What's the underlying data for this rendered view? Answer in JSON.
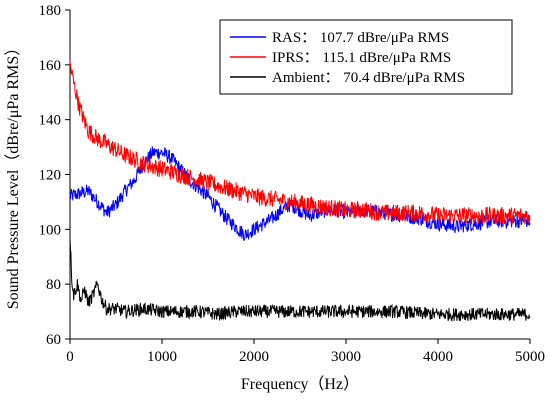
{
  "chart_data": {
    "type": "line",
    "xlabel": "Frequency（Hz）",
    "ylabel": "Sound Pressure Level（dBre/μPa RMS）",
    "xlim": [
      0,
      5000
    ],
    "ylim": [
      60,
      180
    ],
    "xticks": [
      0,
      1000,
      2000,
      3000,
      4000,
      5000
    ],
    "yticks": [
      60,
      80,
      100,
      120,
      140,
      160,
      180
    ],
    "grid": false,
    "legend_position": "top-right",
    "series": [
      {
        "name": "RAS： 107.7 dBre/μPa RMS",
        "color": "#0000ff",
        "x": [
          0,
          100,
          200,
          300,
          400,
          500,
          600,
          700,
          800,
          900,
          1000,
          1100,
          1200,
          1300,
          1400,
          1500,
          1600,
          1700,
          1800,
          1900,
          2000,
          2100,
          2200,
          2300,
          2400,
          2500,
          2600,
          2700,
          2800,
          2900,
          3000,
          3200,
          3400,
          3600,
          3800,
          4000,
          4200,
          4400,
          4600,
          4800,
          5000
        ],
        "values": [
          112,
          113,
          114,
          110,
          106,
          109,
          114,
          118,
          124,
          128,
          128,
          126,
          122,
          118,
          115,
          112,
          108,
          104,
          101,
          98,
          100,
          102,
          104,
          107,
          109,
          107,
          105,
          106,
          107,
          107,
          106,
          107,
          106,
          105,
          104,
          102,
          101,
          102,
          103,
          103,
          103
        ]
      },
      {
        "name": "IPRS： 115.1 dBre/μPa RMS",
        "color": "#ff0000",
        "x": [
          0,
          50,
          100,
          150,
          200,
          300,
          400,
          600,
          800,
          1000,
          1200,
          1400,
          1600,
          1800,
          2000,
          2200,
          2400,
          2600,
          2800,
          3000,
          3200,
          3400,
          3600,
          3800,
          4000,
          4200,
          4400,
          4600,
          4800,
          5000
        ],
        "values": [
          160,
          152,
          145,
          140,
          136,
          133,
          131,
          127,
          124,
          122,
          120,
          118,
          116,
          114,
          112,
          111,
          110,
          109,
          108,
          107,
          107,
          106,
          106,
          106,
          105,
          105,
          105,
          105,
          105,
          105
        ]
      },
      {
        "name": "Ambient： 70.4 dBre/μPa RMS",
        "color": "#000000",
        "x": [
          0,
          20,
          40,
          80,
          120,
          160,
          200,
          250,
          300,
          350,
          400,
          500,
          600,
          800,
          1000,
          1200,
          1400,
          1600,
          1800,
          2000,
          2200,
          2400,
          2600,
          2800,
          3000,
          3500,
          4000,
          4500,
          5000
        ],
        "values": [
          98,
          82,
          76,
          80,
          74,
          78,
          73,
          76,
          80,
          74,
          71,
          71,
          70,
          71,
          70,
          70,
          70,
          69,
          70,
          70,
          70,
          70,
          70,
          70,
          70,
          70,
          69,
          69,
          69
        ]
      }
    ]
  }
}
